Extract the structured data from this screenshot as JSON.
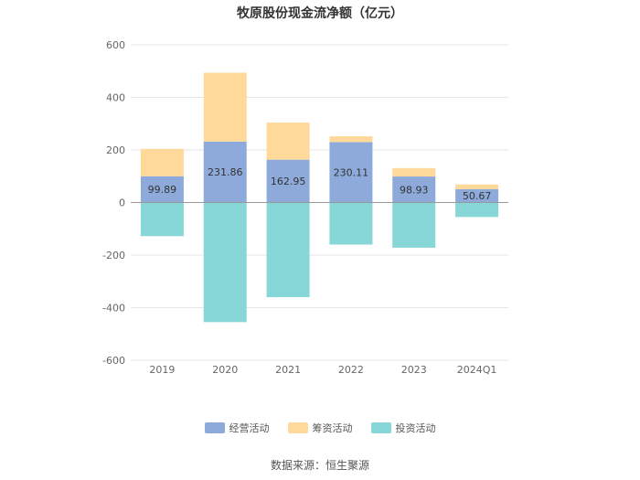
{
  "chart_data": {
    "type": "bar",
    "stacked": true,
    "title": "牧原股份现金流净额（亿元）",
    "categories": [
      "2019",
      "2020",
      "2021",
      "2022",
      "2023",
      "2024Q1"
    ],
    "ylim": [
      -600,
      600
    ],
    "yticks": [
      "600",
      "400",
      "200",
      "0",
      "-200",
      "-400",
      "-600"
    ],
    "grid": true,
    "legend_position": "bottom",
    "series": [
      {
        "name": "经营活动",
        "color": "#8eaadb",
        "values": [
          99.89,
          231.86,
          162.95,
          230.11,
          98.93,
          50.67
        ],
        "labels": [
          "99.89",
          "231.86",
          "162.95",
          "230.11",
          "98.93",
          "50.67"
        ]
      },
      {
        "name": "筹资活动",
        "color": "#ffd99a",
        "values": [
          104,
          262,
          141,
          22,
          32,
          18
        ]
      },
      {
        "name": "投资活动",
        "color": "#87d7d9",
        "values": [
          -128,
          -455,
          -360,
          -160,
          -172,
          -55
        ]
      }
    ]
  },
  "source": "数据来源：恒生聚源"
}
